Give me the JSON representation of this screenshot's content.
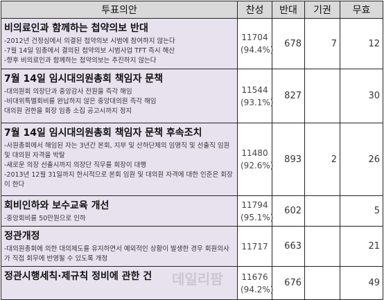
{
  "table": {
    "header": [
      "투표의안",
      "찬성",
      "반대",
      "기권",
      "무효"
    ],
    "rows": [
      {
        "title": "비의료인과 함께하는 첩약의보 반대",
        "details": [
          "-2012년 건정심에서 의결된 첩약의보 시범에 참여하지 않는다",
          "-7월 14일 임총에서 결의된 첩약의보 시범사업 TFT 즉시 해산",
          "-향후 비의료인과 함께하는 첩약의보는 추진하지 않는다"
        ],
        "yes": "11704",
        "yes_pct": "(94.4%)",
        "no": "678",
        "abstain": "7",
        "invalid": "12"
      },
      {
        "title": "7월 14일 임시대의원총회 책임자 문책",
        "details": [
          "-대의원회 의장단과 중앙감사 전원을 즉각 해임",
          "-비대위특별회비를 완납하지 않은 중앙대의원 즉각 해임",
          "대의원 권한을 회장 임총 소집 공고시까지 정지"
        ],
        "yes": "11544",
        "yes_pct": "(93.1%)",
        "no": "827",
        "abstain": null,
        "invalid": "30"
      },
      {
        "title": "7월 14일 임시대의원총회 책임자 문책 후속조치",
        "details": [
          "-사원총회에서 해임된 자는 3년간 본회, 지부 및 산하단체의 임명직 및 선출직 임원 및 대의원 자격을 박탈",
          "-새로운 의장 선출시까지 의장단 직무를 회장이 대행",
          "-2013년 12월 31일까지 한시적으로 본회 임원 및 대의원 자격에 대한 인준은 회장이 한다"
        ],
        "yes": "11480",
        "yes_pct": "(92.6%)",
        "no": "893",
        "abstain": "2",
        "invalid": "26"
      },
      {
        "title": "회비인하와 보수교육 개선",
        "details": [
          "-중앙회비를 50만원으로 인하"
        ],
        "yes": "11794",
        "yes_pct": "(95.1%)",
        "no": "602",
        "abstain": null,
        "invalid": "5"
      },
      {
        "title": "정관개정",
        "details": [
          "-대의원총회에 의한 대의제도를 유지하면서 예외적인 상황이 발생한 경우 회원의사가 직접 회무에 반영될 수 있도록 개정"
        ],
        "yes": "11717",
        "yes_pct": null,
        "no": "663",
        "abstain": null,
        "invalid": "21"
      },
      {
        "title": "정관시행세칙·제규칙 정비에 관한 건",
        "details": [],
        "yes": "11676",
        "yes_pct": "(94.2%)",
        "no": "676",
        "abstain": null,
        "invalid": "49"
      }
    ]
  },
  "watermark": "데일리팜"
}
